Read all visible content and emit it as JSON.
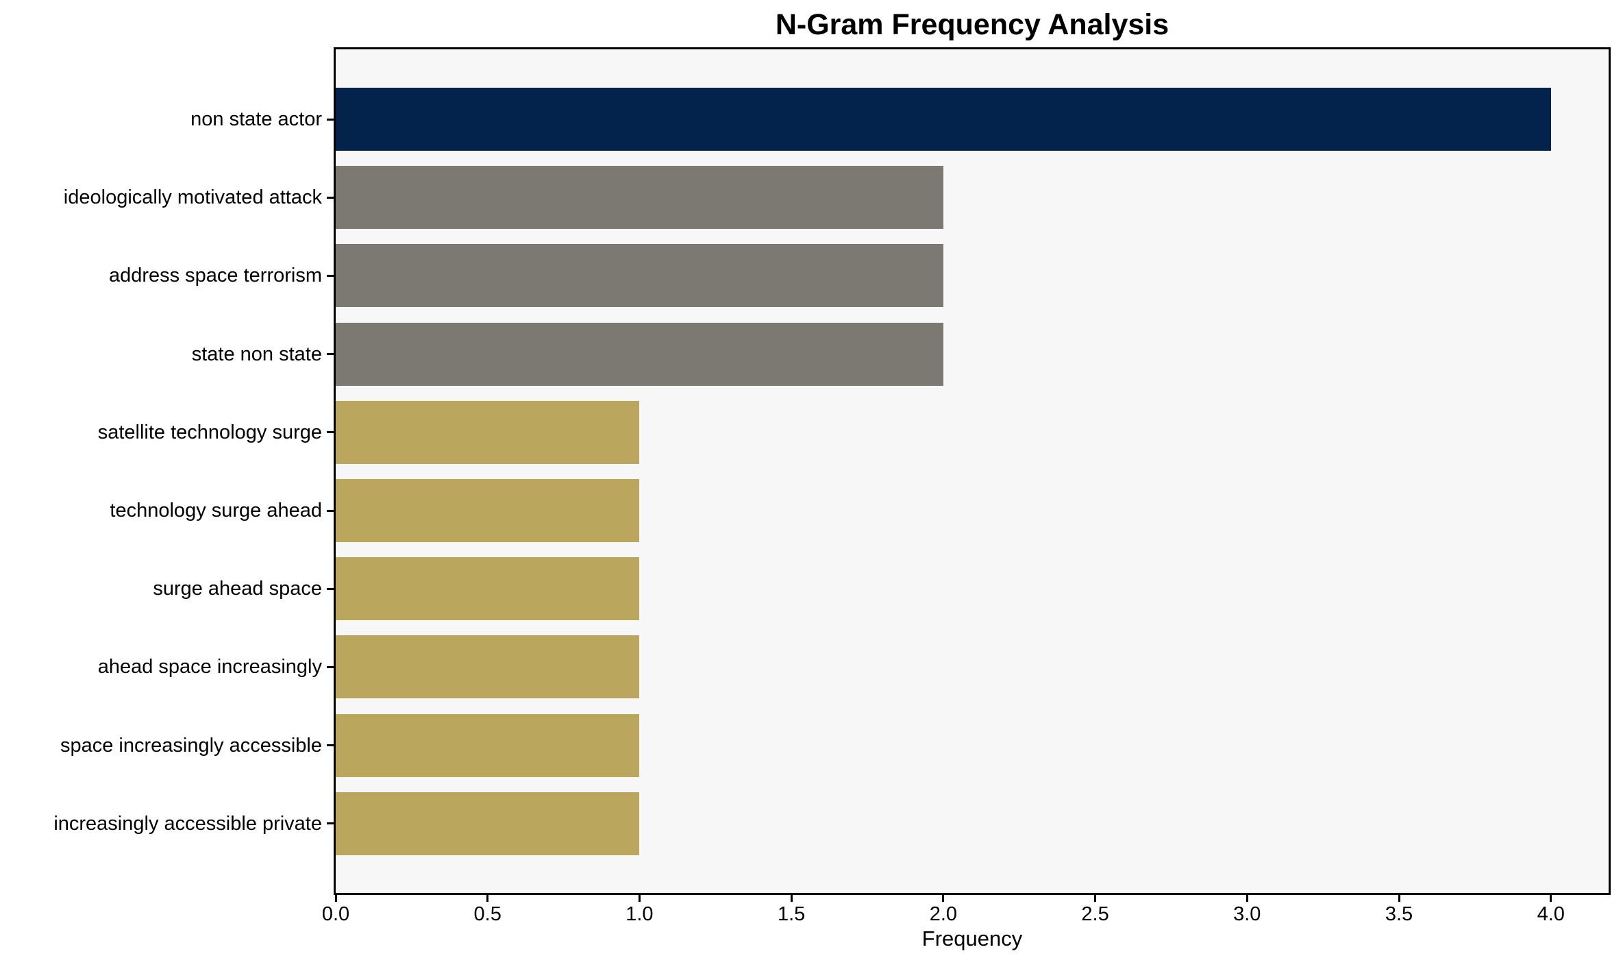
{
  "chart_data": {
    "type": "bar",
    "orientation": "horizontal",
    "title": "N-Gram Frequency Analysis",
    "xlabel": "Frequency",
    "ylabel": "",
    "categories": [
      "non state actor",
      "ideologically motivated attack",
      "address space terrorism",
      "state non state",
      "satellite technology surge",
      "technology surge ahead",
      "surge ahead space",
      "ahead space increasingly",
      "space increasingly accessible",
      "increasingly accessible private"
    ],
    "values": [
      4,
      2,
      2,
      2,
      1,
      1,
      1,
      1,
      1,
      1
    ],
    "bar_colors": [
      "#03234d",
      "#7b7972",
      "#7b7972",
      "#7b7972",
      "#bba65e",
      "#bba65e",
      "#bba65e",
      "#bba65e",
      "#bba65e",
      "#bba65e"
    ],
    "xlim": [
      0,
      4.19
    ],
    "xticks": {
      "values": [
        0,
        0.5,
        1,
        1.5,
        2,
        2.5,
        3,
        3.5,
        4
      ],
      "labels": [
        "0.0",
        "0.5",
        "1.0",
        "1.5",
        "2.0",
        "2.5",
        "3.0",
        "3.5",
        "4.0"
      ]
    },
    "grid": false,
    "legend": null,
    "colors": {
      "figure_background": "#ffffff",
      "plot_background": "#f7f7f7",
      "axis": "#000000",
      "text": "#000000"
    }
  }
}
